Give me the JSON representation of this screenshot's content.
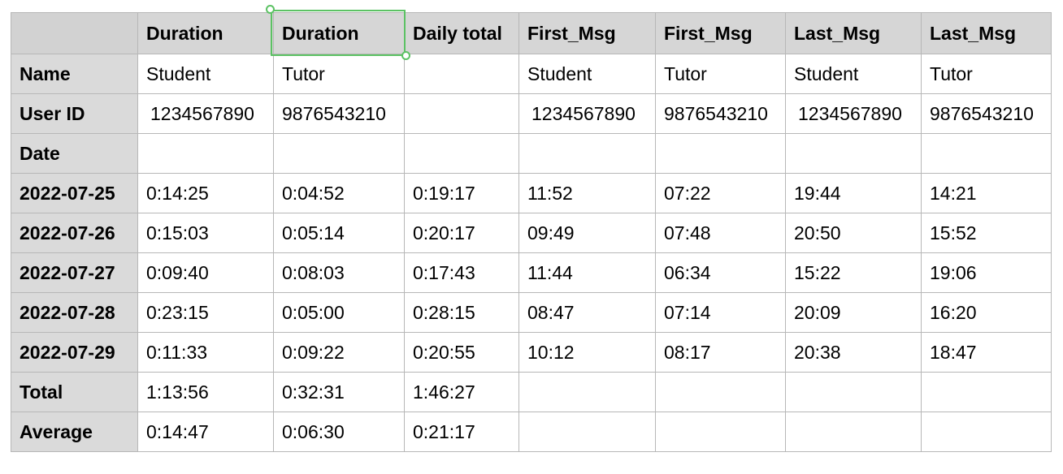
{
  "table": {
    "headers": [
      "",
      "Duration",
      "Duration",
      "Daily total",
      "First_Msg",
      "First_Msg",
      "Last_Msg",
      "Last_Msg"
    ],
    "rows": [
      {
        "label": "Name",
        "cells": [
          "Student",
          "Tutor",
          "",
          "Student",
          "Tutor",
          "Student",
          "Tutor"
        ]
      },
      {
        "label": "User ID",
        "cells": [
          "1234567890",
          "9876543210",
          "",
          "1234567890",
          "9876543210",
          "1234567890",
          "9876543210"
        ]
      },
      {
        "label": "Date",
        "cells": [
          "",
          "",
          "",
          "",
          "",
          "",
          ""
        ]
      },
      {
        "label": "2022-07-25",
        "cells": [
          "0:14:25",
          "0:04:52",
          "0:19:17",
          "11:52",
          "07:22",
          "19:44",
          "14:21"
        ]
      },
      {
        "label": "2022-07-26",
        "cells": [
          "0:15:03",
          "0:05:14",
          "0:20:17",
          "09:49",
          "07:48",
          "20:50",
          "15:52"
        ]
      },
      {
        "label": "2022-07-27",
        "cells": [
          "0:09:40",
          "0:08:03",
          "0:17:43",
          "11:44",
          "06:34",
          "15:22",
          "19:06"
        ]
      },
      {
        "label": "2022-07-28",
        "cells": [
          "0:23:15",
          "0:05:00",
          "0:28:15",
          "08:47",
          "07:14",
          "20:09",
          "16:20"
        ]
      },
      {
        "label": "2022-07-29",
        "cells": [
          "0:11:33",
          "0:09:22",
          "0:20:55",
          "10:12",
          "08:17",
          "20:38",
          "18:47"
        ]
      },
      {
        "label": "Total",
        "cells": [
          "1:13:56",
          "0:32:31",
          "1:46:27",
          "",
          "",
          "",
          ""
        ]
      },
      {
        "label": "Average",
        "cells": [
          "0:14:47",
          "0:06:30",
          "0:21:17",
          "",
          "",
          "",
          ""
        ]
      }
    ]
  },
  "selection": {
    "row": 0,
    "col": 2,
    "color": "#5cc264"
  },
  "colors": {
    "header_bg": "#d6d6d6",
    "row_header_bg": "#dadada",
    "gridline": "#b7b7b7"
  }
}
